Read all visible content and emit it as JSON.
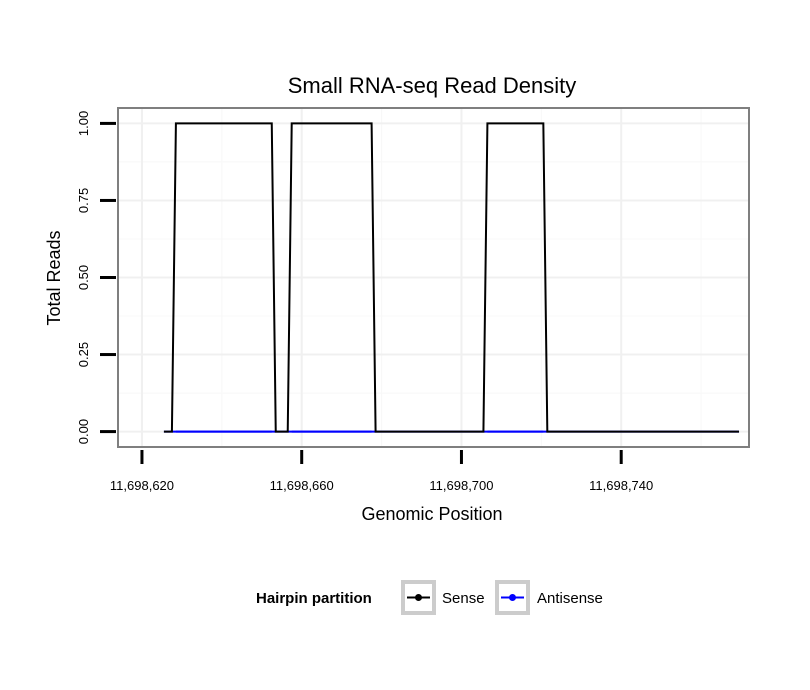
{
  "chart_data": {
    "type": "line",
    "title": "Small RNA-seq Read Density",
    "xlabel": "Genomic Position",
    "ylabel": "Total Reads",
    "xlim": [
      11698614,
      11698772
    ],
    "ylim": [
      -0.05,
      1.05
    ],
    "x_ticks": [
      11698620,
      11698660,
      11698700,
      11698740
    ],
    "x_tick_labels": [
      "11,698,620",
      "11,698,660",
      "11,698,700",
      "11,698,740"
    ],
    "y_ticks": [
      0,
      0.25,
      0.5,
      0.75,
      1
    ],
    "y_tick_labels": [
      "0.00",
      "0.25",
      "0.50",
      "0.75",
      "1.00"
    ],
    "grid": true,
    "legend": {
      "title": "Hairpin partition",
      "position": "bottom"
    },
    "series": [
      {
        "name": "Sense",
        "color": "#000000",
        "x": [
          11698625.5,
          11698627.5,
          11698628.5,
          11698652.5,
          11698653.5,
          11698656.5,
          11698657.5,
          11698677.5,
          11698678.5,
          11698705.5,
          11698706.5,
          11698720.5,
          11698721.5,
          11698769.5
        ],
        "y": [
          0,
          0,
          1,
          1,
          0,
          0,
          1,
          1,
          0,
          0,
          1,
          1,
          0,
          0
        ]
      },
      {
        "name": "Antisense",
        "color": "#0000ff",
        "x": [
          11698625.5,
          11698769.5
        ],
        "y": [
          0,
          0
        ]
      }
    ]
  }
}
